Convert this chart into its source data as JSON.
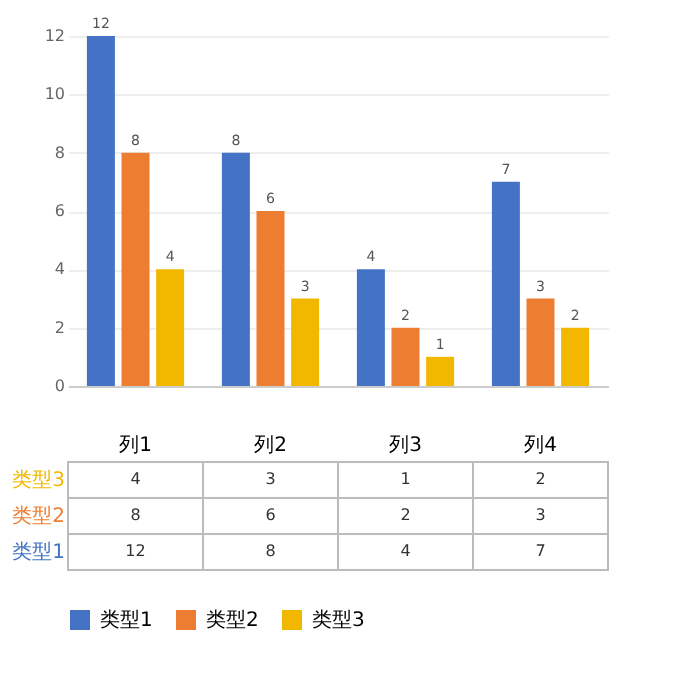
{
  "chart_data": {
    "type": "bar",
    "categories": [
      "列1",
      "列2",
      "列3",
      "列4"
    ],
    "series": [
      {
        "name": "类型1",
        "color": "#4472c4",
        "values": [
          12,
          8,
          4,
          7
        ],
        "value_labels": [
          "12",
          "8",
          "4",
          "7"
        ]
      },
      {
        "name": "类型2",
        "color": "#ed7d31",
        "values": [
          8,
          6,
          2,
          3
        ],
        "value_labels": [
          "8",
          "6",
          "2",
          "3"
        ]
      },
      {
        "name": "类型3",
        "color": "#f2b800",
        "values": [
          4,
          3,
          1,
          2
        ],
        "value_labels": [
          "4",
          "3",
          "1",
          "2"
        ]
      }
    ],
    "ylim": [
      0,
      12
    ],
    "yticks": [
      0,
      2,
      4,
      6,
      8,
      10,
      12
    ],
    "grid": "y",
    "legend": "bottom",
    "annotations": [
      "4",
      "3",
      "1",
      "2",
      "8",
      "6",
      "2",
      "3",
      "12",
      "8",
      "4",
      "7"
    ]
  }
}
